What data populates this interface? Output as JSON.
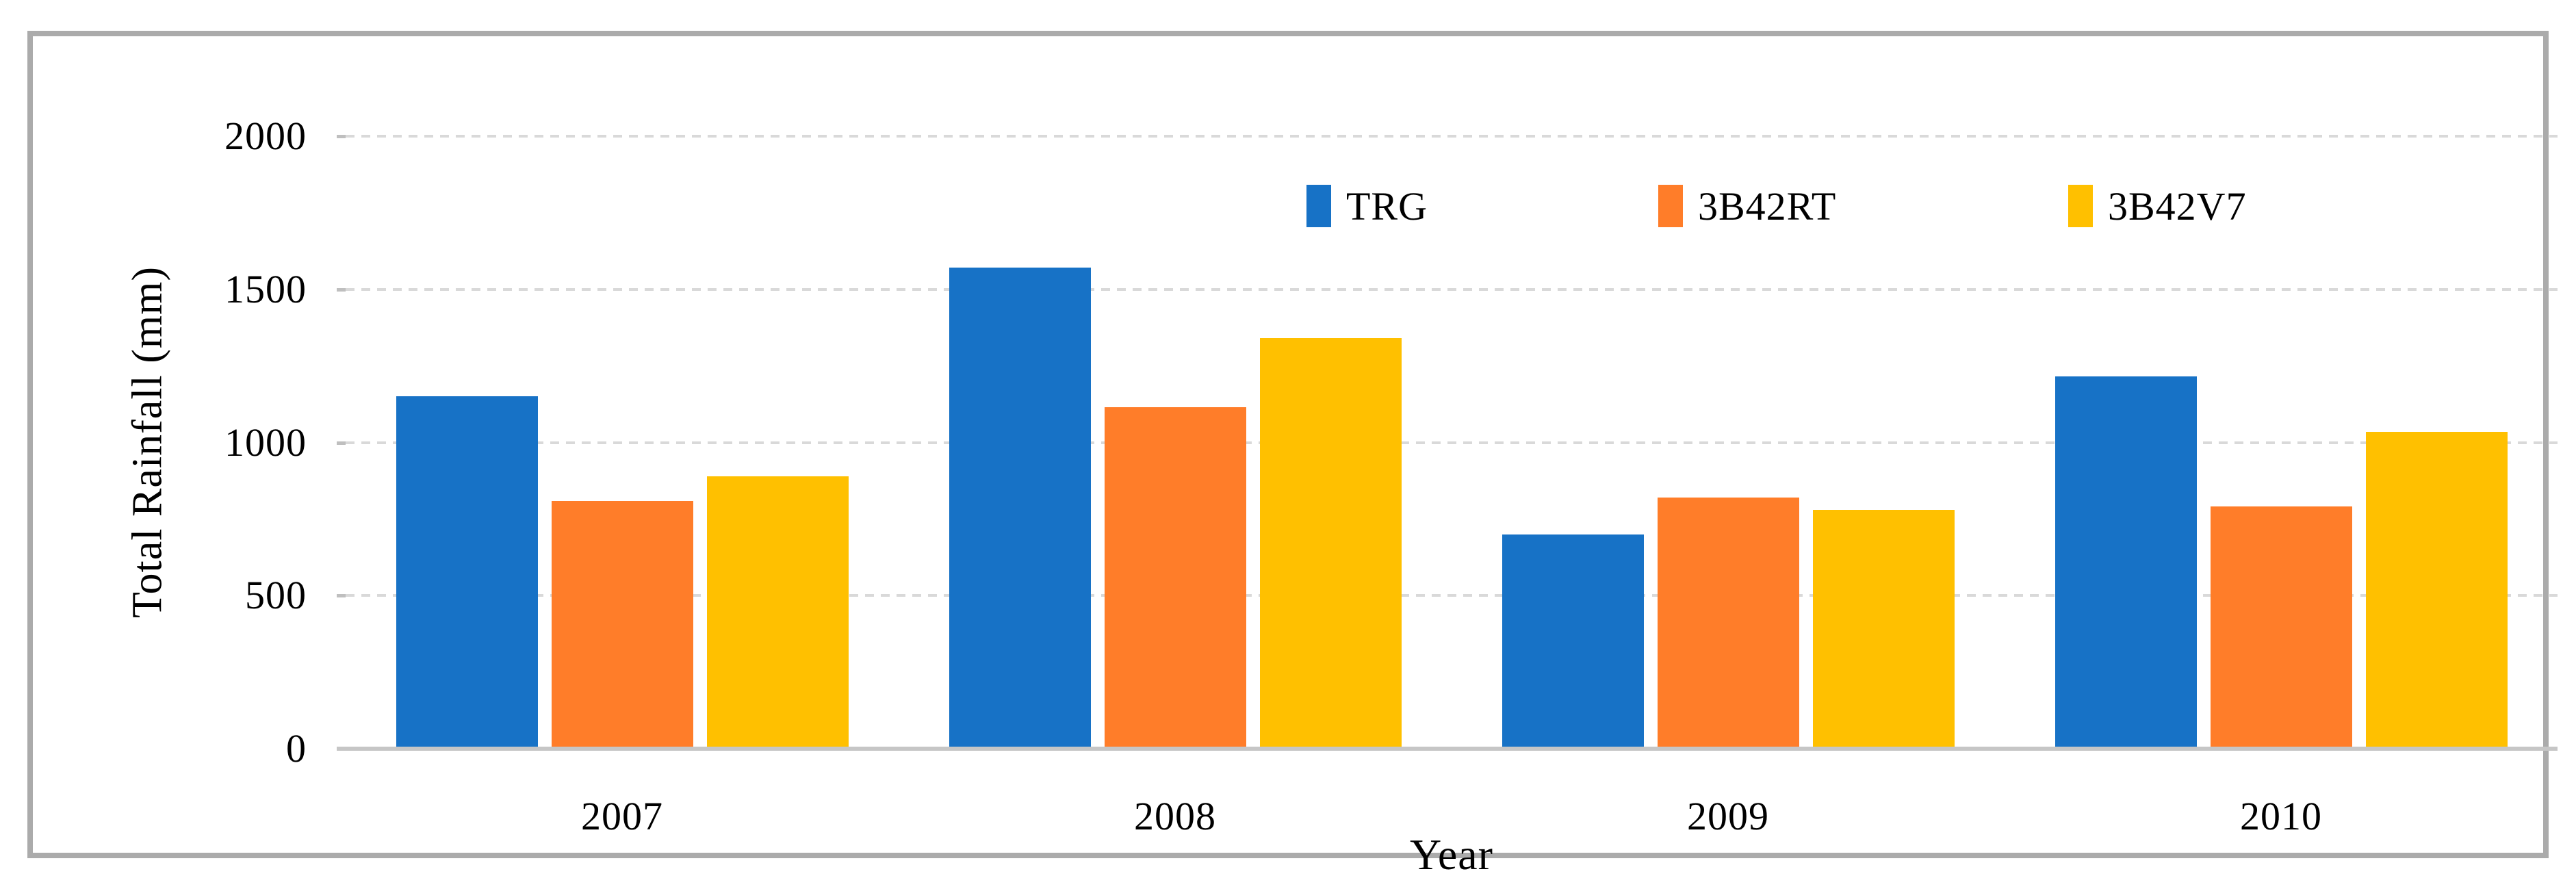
{
  "figure": {
    "border_color": "#ABABAB",
    "background_color": "#FFFFFF"
  },
  "chart_data": {
    "type": "bar",
    "title": "",
    "xlabel": "Year",
    "ylabel": "Total Rainfall (mm)",
    "ylim": [
      0,
      2000
    ],
    "yticks": [
      0,
      500,
      1000,
      1500,
      2000
    ],
    "grid": "horizontal dashed gridlines on",
    "gridline_color": "#D9D9D9",
    "axis_line_color": "#C6C6C6",
    "legend_position": "top inside, horizontal row",
    "categories": [
      "2007",
      "2008",
      "2009",
      "2010"
    ],
    "series": [
      {
        "name": "TRG",
        "color": "#1772C6",
        "values": [
          1150,
          1570,
          700,
          1215
        ]
      },
      {
        "name": "3B42RT",
        "color": "#FF7D29",
        "values": [
          810,
          1115,
          820,
          790
        ]
      },
      {
        "name": "3B42V7",
        "color": "#FFC000",
        "values": [
          890,
          1340,
          780,
          1035
        ]
      }
    ]
  }
}
